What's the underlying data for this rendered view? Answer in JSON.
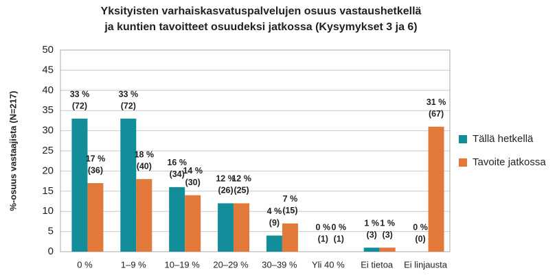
{
  "chart_data": {
    "type": "bar",
    "title": [
      "Yksityisten varhaiskasvatuspalvelujen osuus vastaushetkellä",
      "ja kuntien tavoitteet osuudeksi jatkossa (Kysymykset 3 ja 6)"
    ],
    "y_label": "%-osuus vastaajista (N=217)",
    "categories": [
      "0 %",
      "1–9 %",
      "10–19 %",
      "20–29 %",
      "30–39 %",
      "Yli 40 %",
      "Ei tietoa",
      "Ei linjausta"
    ],
    "series": [
      {
        "name": "Tällä hetkellä",
        "color": "#138d99",
        "values": [
          33,
          33,
          16,
          12,
          4,
          0,
          1,
          0
        ],
        "value_labels": [
          [
            "33 %",
            "(72)"
          ],
          [
            "33 %",
            "(72)"
          ],
          [
            "16 %",
            "(34)"
          ],
          [
            "12 %",
            "(26)"
          ],
          [
            "4 %",
            "(9)"
          ],
          [
            "0 %",
            "(1)"
          ],
          [
            "1 %",
            "(3)"
          ],
          [
            "0 %",
            "(0)"
          ]
        ]
      },
      {
        "name": "Tavoite jatkossa",
        "color": "#e2793a",
        "values": [
          17,
          18,
          14,
          12,
          7,
          0,
          1,
          31
        ],
        "value_labels": [
          [
            "17 %",
            "(36)"
          ],
          [
            "18 %",
            "(40)"
          ],
          [
            "14 %",
            "(30)"
          ],
          [
            "12 %",
            "(25)"
          ],
          [
            "7 %",
            "(15)"
          ],
          [
            "0 %",
            "(1)"
          ],
          [
            "1 %",
            "(3)"
          ],
          [
            "31 %",
            "(67)"
          ]
        ]
      }
    ],
    "ylim": [
      0,
      50
    ],
    "yticks": [
      0,
      5,
      10,
      15,
      20,
      25,
      30,
      35,
      40,
      45,
      50
    ],
    "grid": true,
    "legend": "right"
  }
}
